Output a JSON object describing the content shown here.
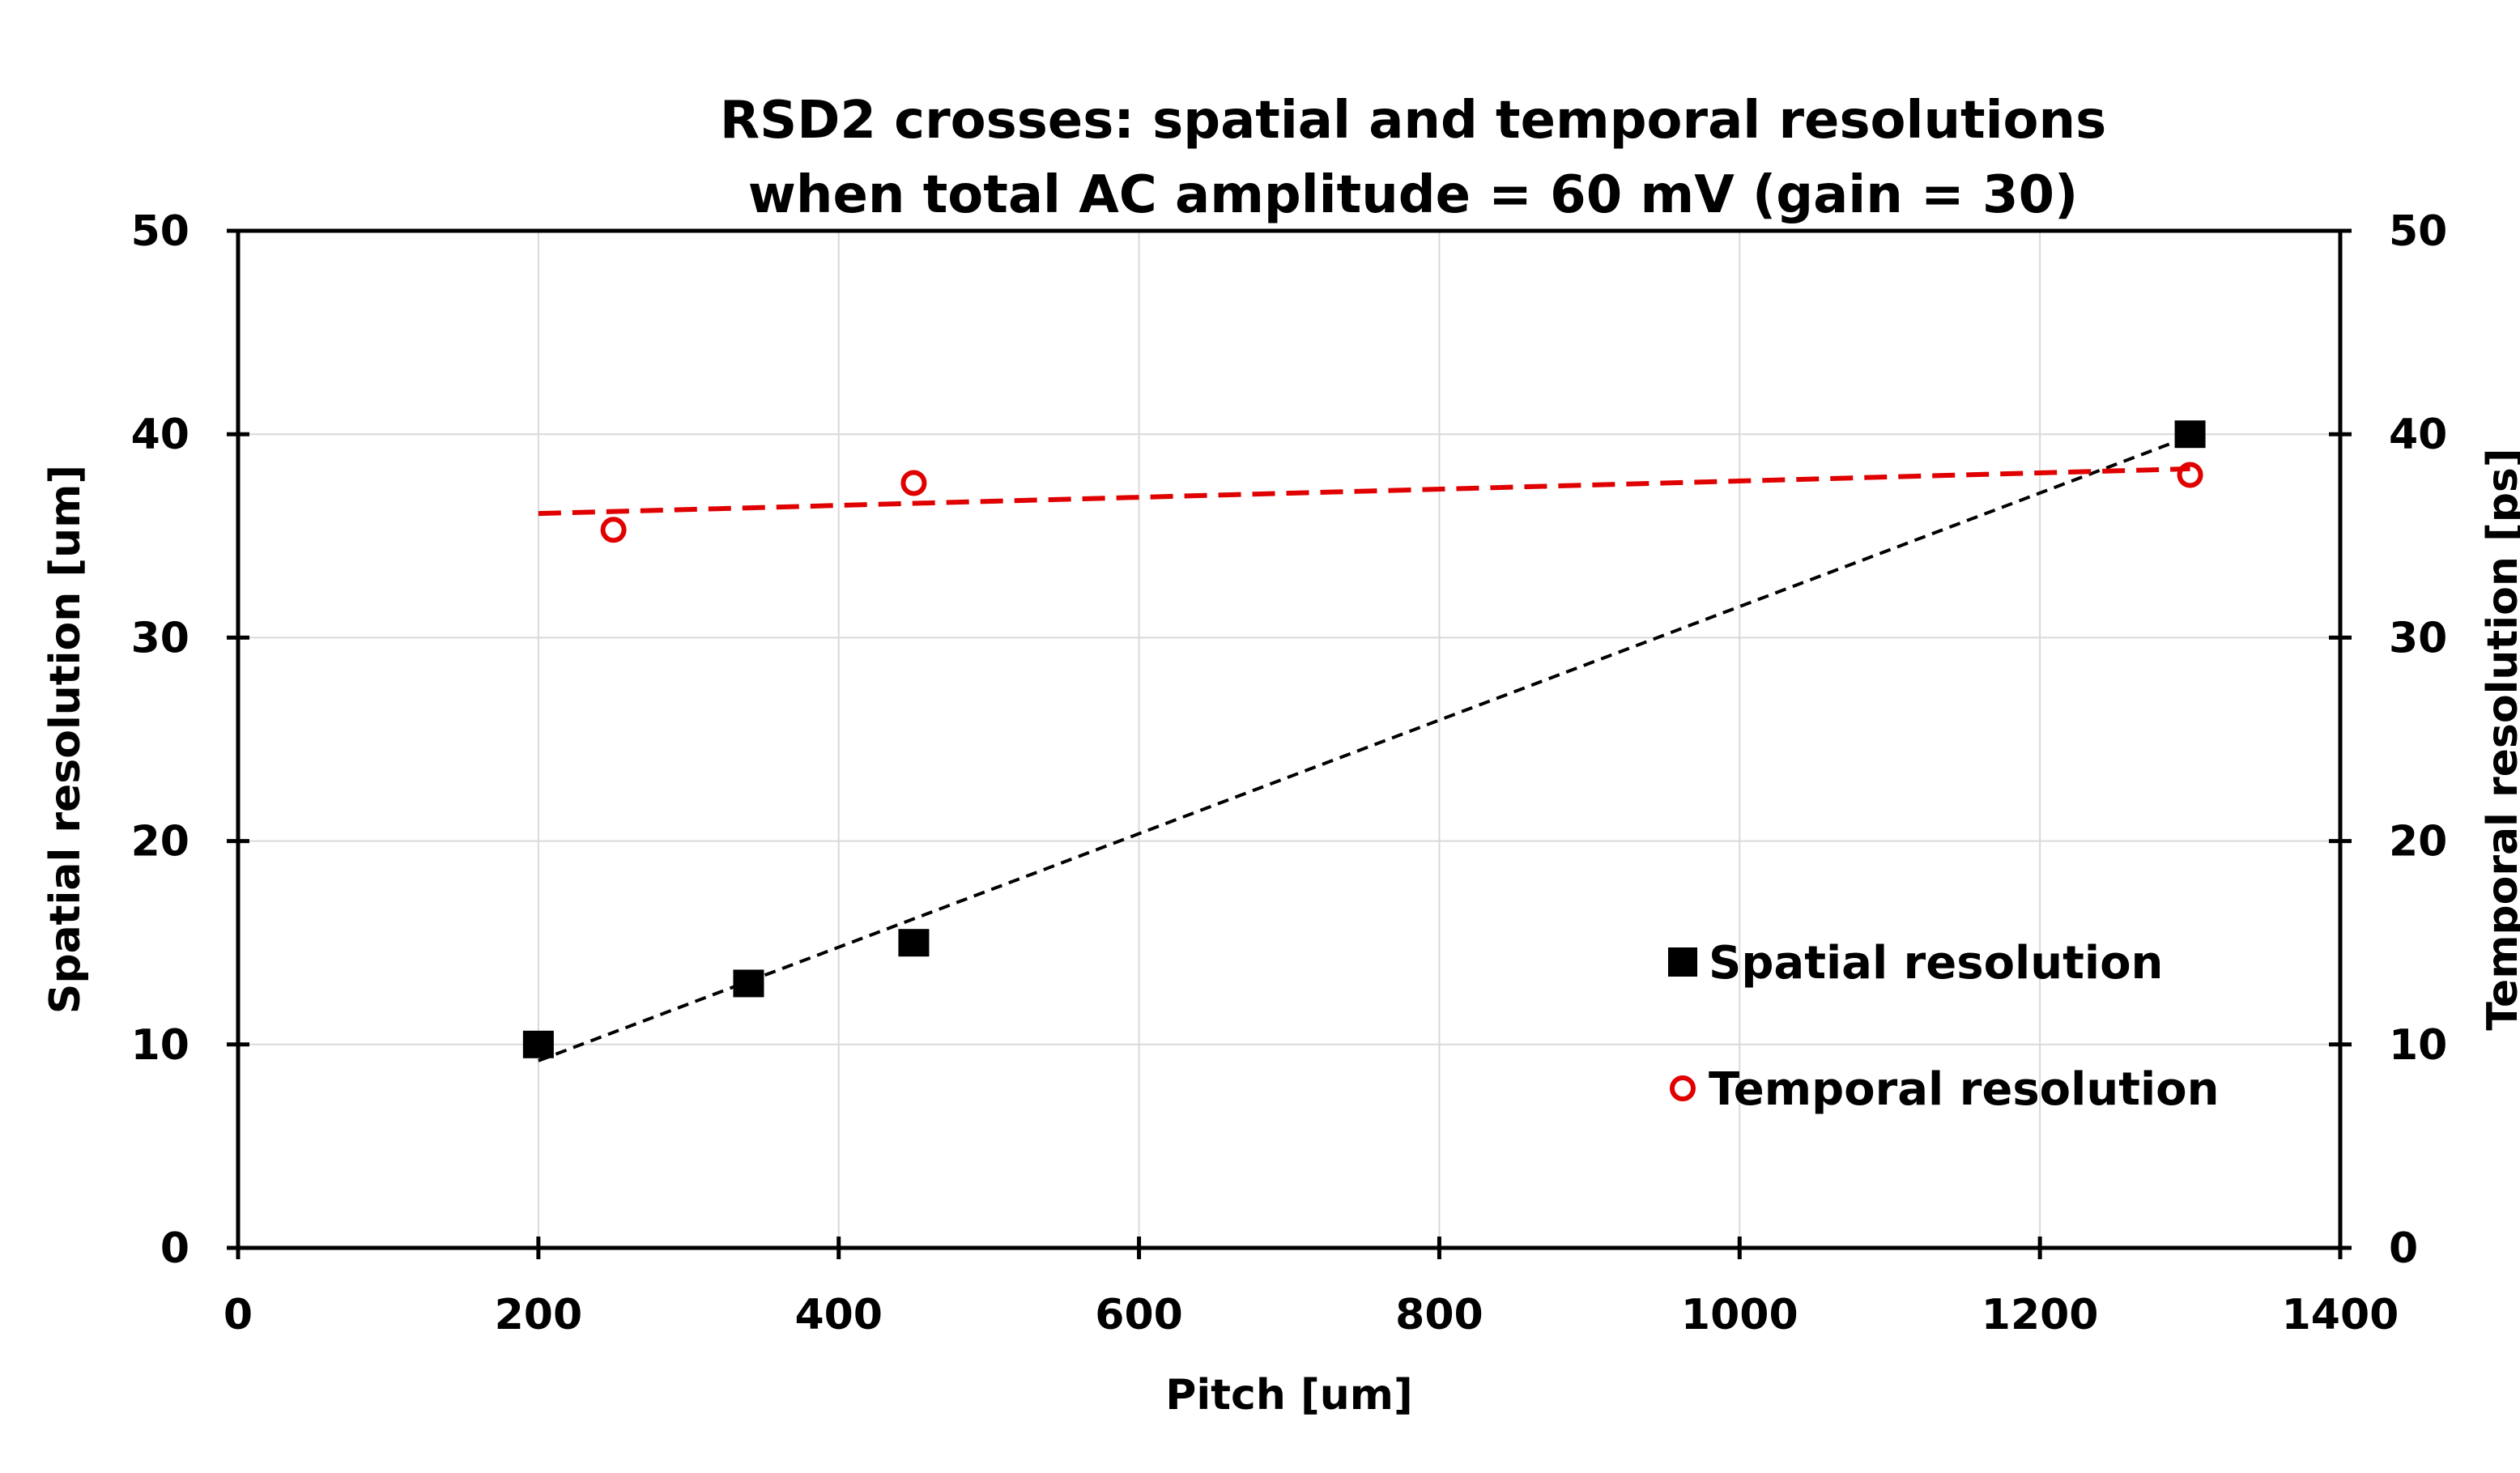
{
  "chart_data": {
    "type": "scatter",
    "title_lines": [
      "RSD2 crosses: spatial and temporal resolutions",
      "when total  AC amplitude = 60  mV (gain = 30)"
    ],
    "xlabel": "Pitch [um]",
    "ylabel_left": "Spatial resolution [um]",
    "ylabel_right": "Temporal resolution  [ps]",
    "xlim": [
      0,
      1400
    ],
    "ylim_left": [
      0,
      50
    ],
    "ylim_right": [
      0,
      50
    ],
    "x_ticks": [
      "0",
      "200",
      "400",
      "600",
      "800",
      "1000",
      "1200",
      "1400"
    ],
    "y_ticks_left": [
      "0",
      "10",
      "20",
      "30",
      "40",
      "50"
    ],
    "y_ticks_right": [
      "0",
      "10",
      "20",
      "30",
      "40",
      "50"
    ],
    "grid": true,
    "legend_position": "lower-right",
    "series": [
      {
        "name": "Spatial resolution",
        "axis": "left",
        "marker": "filled-square",
        "color": "#000000",
        "x": [
          200,
          340,
          450,
          1300
        ],
        "y": [
          10,
          13,
          15,
          40
        ],
        "trendline": {
          "type": "linear",
          "x_range": [
            200,
            1300
          ],
          "y_range": [
            9.2,
            39.9
          ],
          "color": "#000000"
        }
      },
      {
        "name": "Temporal resolution",
        "axis": "right",
        "marker": "open-circle",
        "color": "#e00000",
        "x": [
          250,
          450,
          1300
        ],
        "y": [
          35.3,
          37.6,
          38
        ],
        "trendline": {
          "type": "linear",
          "x_range": [
            200,
            1300
          ],
          "y_range": [
            36.1,
            38.3
          ],
          "color": "#e00000"
        }
      }
    ]
  }
}
